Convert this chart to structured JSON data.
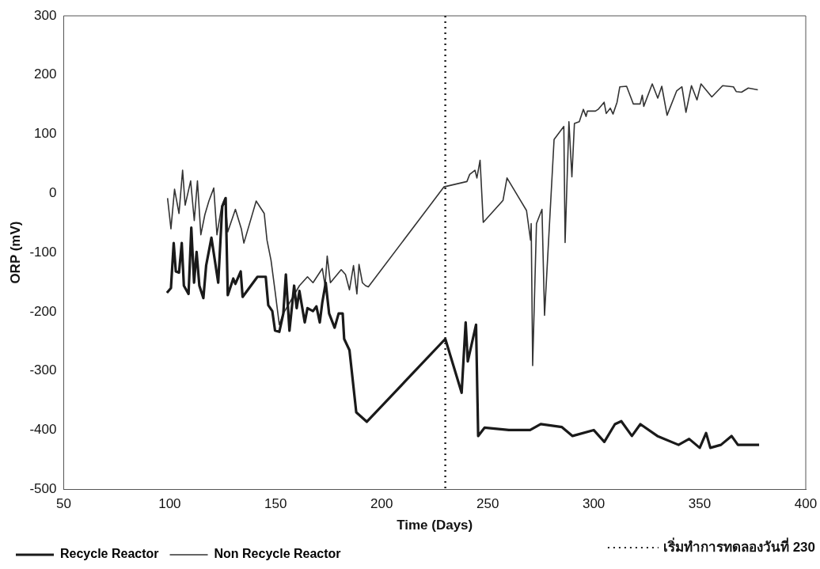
{
  "chart_data": {
    "type": "line",
    "xlabel": "Time (Days)",
    "ylabel": "ORP (mV)",
    "xlim": [
      50,
      400
    ],
    "xticks": [
      50,
      100,
      150,
      200,
      250,
      300,
      350,
      400
    ],
    "ylim": [
      -500,
      300
    ],
    "yticks": [
      -500,
      -400,
      -300,
      -200,
      -100,
      0,
      100,
      200,
      300
    ],
    "grid": false,
    "legend": "bottom left",
    "marker": "none",
    "line_style": "solid",
    "ref_lines": [
      {
        "axis": "x",
        "value": 230,
        "label": "เริ่มทำการทดลองวันที่ 230",
        "color": "#222222",
        "line_style": "dotted"
      }
    ],
    "series": [
      {
        "name": "Recycle Reactor",
        "color": "#1a1a1a",
        "x": [
          98.7,
          100.6,
          101.9,
          102.9,
          104.4,
          105.7,
          106.7,
          108.9,
          110.2,
          111.5,
          112.7,
          114,
          115.9,
          117.2,
          119.7,
          122.9,
          124.8,
          126.4,
          127.4,
          130,
          131,
          133.5,
          134.4,
          141.4,
          145.3,
          146.5,
          148.4,
          149.7,
          151.7,
          153.6,
          154.8,
          156.5,
          158.7,
          159.9,
          161.2,
          163.7,
          165,
          167.6,
          169.2,
          170.8,
          172,
          173.6,
          175.2,
          177.8,
          179.7,
          181.6,
          182.3,
          184.8,
          188,
          193,
          230,
          237.7,
          239.6,
          240.6,
          244.5,
          245.5,
          248.5,
          260,
          270,
          275,
          285,
          290,
          300,
          305,
          310,
          313,
          318,
          322,
          330,
          340,
          345,
          350,
          353,
          355,
          360,
          365,
          368,
          378
        ],
        "values": [
          -168,
          -160,
          -84,
          -132,
          -134,
          -84,
          -156,
          -170,
          -58,
          -151,
          -99,
          -156,
          -177,
          -122,
          -75,
          -151,
          -22,
          -8,
          -172,
          -144,
          -153,
          -132,
          -175,
          -141,
          -141,
          -189,
          -199,
          -232,
          -234,
          -203,
          -137,
          -232,
          -156,
          -194,
          -165,
          -218,
          -194,
          -199,
          -191,
          -218,
          -184,
          -151,
          -203,
          -227,
          -203,
          -203,
          -246,
          -265,
          -370,
          -386,
          -246,
          -337,
          -218,
          -284,
          -222,
          -410,
          -396,
          -400,
          -400,
          -390,
          -395,
          -410,
          -400,
          -420,
          -390,
          -385,
          -410,
          -390,
          -410,
          -425,
          -415,
          -430,
          -405,
          -430,
          -425,
          -410,
          -425,
          -425
        ]
      },
      {
        "name": "Non Recycle Reactor",
        "color": "#333333",
        "x": [
          99,
          100.6,
          102.3,
          104.4,
          106.1,
          107.3,
          109.9,
          111.6,
          113.1,
          114.7,
          116.6,
          118.5,
          120.8,
          122.3,
          124.5,
          126.1,
          127.4,
          131,
          133.8,
          135,
          140.8,
          144.6,
          145.9,
          147.8,
          149.7,
          151.7,
          153.6,
          161.2,
          165,
          167.6,
          172,
          173.3,
          174.3,
          175.8,
          180.9,
          182.9,
          184.8,
          186.7,
          188.3,
          189.3,
          190.9,
          192.4,
          193.7,
          229.4,
          240.2,
          241.5,
          244,
          244.9,
          246.4,
          247.9,
          257.2,
          259.1,
          268.3,
          270.2,
          270.5,
          271.2,
          273,
          275.6,
          276.8,
          281.3,
          285.9,
          286.5,
          288.3,
          289.7,
          290.9,
          293.2,
          295.1,
          296.4,
          297,
          300.8,
          302.1,
          304.9,
          305.9,
          307.8,
          309.1,
          311,
          312.3,
          315.5,
          318.7,
          321.9,
          322.9,
          323.6,
          327.6,
          330.2,
          332.1,
          334.6,
          339.1,
          341.6,
          343.5,
          346.1,
          348.7,
          350.6,
          355.7,
          360.8,
          365.9,
          367.2,
          369.7,
          372.9,
          377.4
        ],
        "values": [
          -8,
          -60,
          7,
          -34,
          39,
          -20,
          21,
          -46,
          21,
          -70,
          -36,
          -13,
          9,
          -70,
          -22,
          -8,
          -65,
          -27,
          -60,
          -84,
          -13,
          -34,
          -79,
          -113,
          -165,
          -222,
          -203,
          -156,
          -141,
          -151,
          -127,
          -156,
          -106,
          -151,
          -129,
          -137,
          -163,
          -122,
          -170,
          -120,
          -151,
          -156,
          -158,
          11,
          20,
          32,
          39,
          26,
          56,
          -49,
          -12,
          26,
          -29,
          -79,
          -51,
          -291,
          -51,
          -27,
          -206,
          91,
          113,
          -83,
          121,
          28,
          118,
          121,
          142,
          130,
          139,
          139,
          142,
          154,
          135,
          144,
          134,
          154,
          180,
          181,
          151,
          151,
          166,
          147,
          185,
          161,
          181,
          132,
          173,
          180,
          137,
          182,
          158,
          185,
          163,
          182,
          180,
          172,
          171,
          178,
          175
        ]
      }
    ]
  }
}
